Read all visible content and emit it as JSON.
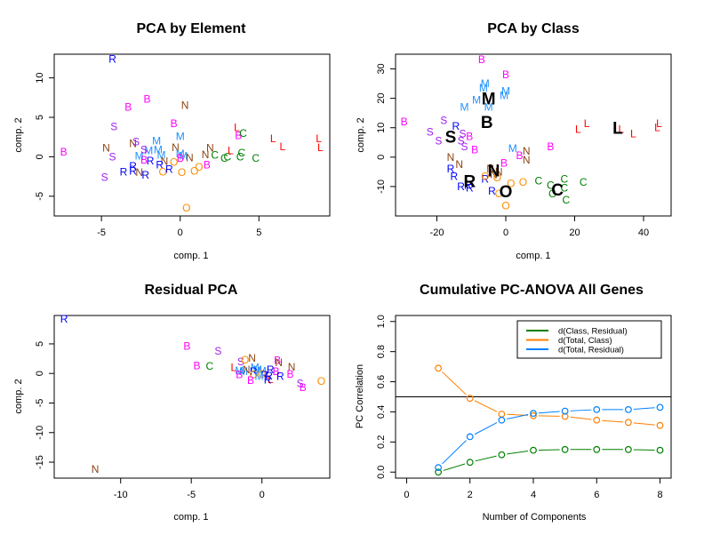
{
  "colors": {
    "B": "#ff00ff",
    "S": "#a020f0",
    "M": "#1e90ff",
    "R": "#0000ff",
    "N": "#8b4513",
    "O": "#ff8c00",
    "C": "#008000",
    "L": "#ff0000",
    "centroid": "#000000",
    "green_line": "#007f00",
    "orange_line": "#ff7f00",
    "blue_line": "#0080ff"
  },
  "chart_data": [
    {
      "type": "scatter",
      "title": "PCA by Element",
      "xlabel": "comp. 1",
      "ylabel": "comp. 2",
      "xlim": [
        -8,
        9.5
      ],
      "ylim": [
        -7.5,
        13
      ],
      "xticks": [
        -5,
        0,
        5
      ],
      "yticks": [
        -5,
        0,
        5,
        10
      ],
      "points": [
        {
          "label": "R",
          "x": -4.3,
          "y": 12.4
        },
        {
          "label": "B",
          "x": -2.1,
          "y": 7.3
        },
        {
          "label": "B",
          "x": -3.3,
          "y": 6.3
        },
        {
          "label": "N",
          "x": 0.3,
          "y": 6.5
        },
        {
          "label": "B",
          "x": -0.4,
          "y": 4.2
        },
        {
          "label": "S",
          "x": -4.2,
          "y": 3.8
        },
        {
          "label": "M",
          "x": 0.0,
          "y": 2.6
        },
        {
          "label": "M",
          "x": -1.5,
          "y": 2.0
        },
        {
          "label": "N",
          "x": -3.0,
          "y": 1.7
        },
        {
          "label": "S",
          "x": -2.8,
          "y": 1.9
        },
        {
          "label": "N",
          "x": -4.7,
          "y": 1.1
        },
        {
          "label": "B",
          "x": -7.4,
          "y": 0.6
        },
        {
          "label": "S",
          "x": -4.3,
          "y": 0.0
        },
        {
          "label": "M",
          "x": -2.6,
          "y": 0.1
        },
        {
          "label": "M",
          "x": -2.0,
          "y": 0.8
        },
        {
          "label": "M",
          "x": -1.4,
          "y": 0.9
        },
        {
          "label": "M",
          "x": -1.2,
          "y": 0.2
        },
        {
          "label": "S",
          "x": -2.3,
          "y": 0.9
        },
        {
          "label": "B",
          "x": -2.3,
          "y": -0.4
        },
        {
          "label": "R",
          "x": -1.9,
          "y": -0.5
        },
        {
          "label": "N",
          "x": -0.3,
          "y": 1.2
        },
        {
          "label": "M",
          "x": 0.0,
          "y": 0.4
        },
        {
          "label": "M",
          "x": 0.2,
          "y": 0.1
        },
        {
          "label": "B",
          "x": 0.0,
          "y": -0.2
        },
        {
          "label": "N",
          "x": 0.6,
          "y": -0.1
        },
        {
          "label": "N",
          "x": -1.0,
          "y": -0.6
        },
        {
          "label": "R",
          "x": -1.3,
          "y": -1.0
        },
        {
          "label": "O",
          "x": -0.4,
          "y": -0.7
        },
        {
          "label": "R",
          "x": -0.7,
          "y": -1.6
        },
        {
          "label": "O",
          "x": -1.1,
          "y": -1.9
        },
        {
          "label": "O",
          "x": 0.1,
          "y": -2.0
        },
        {
          "label": "O",
          "x": 0.9,
          "y": -1.8
        },
        {
          "label": "O",
          "x": 1.2,
          "y": -1.3
        },
        {
          "label": "O",
          "x": 0.4,
          "y": -6.5
        },
        {
          "label": "B",
          "x": 1.7,
          "y": -1.0
        },
        {
          "label": "R",
          "x": -3.0,
          "y": -1.2
        },
        {
          "label": "R",
          "x": -3.0,
          "y": -1.8
        },
        {
          "label": "R",
          "x": -3.6,
          "y": -1.9
        },
        {
          "label": "N",
          "x": -2.6,
          "y": -2.0
        },
        {
          "label": "R",
          "x": -2.2,
          "y": -2.3
        },
        {
          "label": "S",
          "x": -4.8,
          "y": -2.6
        },
        {
          "label": "N",
          "x": 1.6,
          "y": 0.3
        },
        {
          "label": "N",
          "x": 1.9,
          "y": 1.1
        },
        {
          "label": "C",
          "x": 2.2,
          "y": 0.2
        },
        {
          "label": "C",
          "x": 2.8,
          "y": -0.2
        },
        {
          "label": "C",
          "x": 3.0,
          "y": 0.0
        },
        {
          "label": "L",
          "x": 3.2,
          "y": 0.8
        },
        {
          "label": "L",
          "x": 3.6,
          "y": 3.7
        },
        {
          "label": "B",
          "x": 3.7,
          "y": 2.7
        },
        {
          "label": "C",
          "x": 4.0,
          "y": 3.0
        },
        {
          "label": "C",
          "x": 3.9,
          "y": 0.5
        },
        {
          "label": "C",
          "x": 3.8,
          "y": 0.0
        },
        {
          "label": "C",
          "x": 4.8,
          "y": -0.2
        },
        {
          "label": "L",
          "x": 5.9,
          "y": 2.3
        },
        {
          "label": "L",
          "x": 6.5,
          "y": 1.3
        },
        {
          "label": "L",
          "x": 8.8,
          "y": 2.3
        },
        {
          "label": "L",
          "x": 8.9,
          "y": 1.2
        }
      ]
    },
    {
      "type": "scatter",
      "title": "PCA by Class",
      "xlabel": "comp. 1",
      "ylabel": "comp. 2",
      "xlim": [
        -32,
        48
      ],
      "ylim": [
        -20,
        35
      ],
      "xticks": [
        -20,
        0,
        20,
        40
      ],
      "yticks": [
        -10,
        0,
        10,
        20,
        30
      ],
      "points": [
        {
          "label": "B",
          "x": -7.0,
          "y": 33.2
        },
        {
          "label": "B",
          "x": 0.0,
          "y": 28.0
        },
        {
          "label": "M",
          "x": -6.0,
          "y": 25.0
        },
        {
          "label": "M",
          "x": -6.5,
          "y": 23.5
        },
        {
          "label": "M",
          "x": 0.0,
          "y": 22.5
        },
        {
          "label": "M",
          "x": -0.5,
          "y": 21.0
        },
        {
          "label": "M",
          "x": -8.5,
          "y": 19.5
        },
        {
          "label": "M",
          "x": -5.0,
          "y": 17.0
        },
        {
          "label": "M",
          "x": -12.0,
          "y": 17.0
        },
        {
          "label": "B",
          "x": -29.5,
          "y": 12.0
        },
        {
          "label": "S",
          "x": -18.0,
          "y": 12.5
        },
        {
          "label": "R",
          "x": -14.5,
          "y": 10.5
        },
        {
          "label": "S",
          "x": -22.0,
          "y": 8.5
        },
        {
          "label": "S",
          "x": -19.5,
          "y": 5.5
        },
        {
          "label": "S",
          "x": -12.5,
          "y": 8.0
        },
        {
          "label": "S",
          "x": -13.0,
          "y": 5.5
        },
        {
          "label": "S",
          "x": -12.0,
          "y": 3.5
        },
        {
          "label": "B",
          "x": -10.5,
          "y": 7.0
        },
        {
          "label": "B",
          "x": -9.0,
          "y": 2.5
        },
        {
          "label": "M",
          "x": 2.0,
          "y": 3.0
        },
        {
          "label": "B",
          "x": 4.0,
          "y": 0.5
        },
        {
          "label": "N",
          "x": 6.0,
          "y": 2.0
        },
        {
          "label": "N",
          "x": 6.0,
          "y": -1.0
        },
        {
          "label": "B",
          "x": 13.0,
          "y": 3.5
        },
        {
          "label": "N",
          "x": -16.0,
          "y": 0.0
        },
        {
          "label": "N",
          "x": -13.5,
          "y": -2.5
        },
        {
          "label": "B",
          "x": -0.5,
          "y": -2.0
        },
        {
          "label": "R",
          "x": -16.0,
          "y": -4.0
        },
        {
          "label": "R",
          "x": -15.0,
          "y": -6.5
        },
        {
          "label": "R",
          "x": -13.0,
          "y": -10.0
        },
        {
          "label": "R",
          "x": -10.5,
          "y": -10.5
        },
        {
          "label": "R",
          "x": -11.0,
          "y": -9.5
        },
        {
          "label": "R",
          "x": -6.0,
          "y": -7.5
        },
        {
          "label": "R",
          "x": -4.0,
          "y": -11.5
        },
        {
          "label": "N",
          "x": -4.5,
          "y": -4.0
        },
        {
          "label": "N",
          "x": -2.0,
          "y": -5.0
        },
        {
          "label": "N",
          "x": -3.5,
          "y": -6.0
        },
        {
          "label": "O",
          "x": -6.0,
          "y": -6.5
        },
        {
          "label": "O",
          "x": -2.5,
          "y": -7.0
        },
        {
          "label": "O",
          "x": 1.5,
          "y": -9.0
        },
        {
          "label": "O",
          "x": 5.0,
          "y": -8.5
        },
        {
          "label": "O",
          "x": -2.0,
          "y": -12.5
        },
        {
          "label": "O",
          "x": 0.0,
          "y": -16.5
        },
        {
          "label": "C",
          "x": 9.5,
          "y": -8.0
        },
        {
          "label": "C",
          "x": 13.0,
          "y": -9.5
        },
        {
          "label": "C",
          "x": 13.5,
          "y": -12.5
        },
        {
          "label": "C",
          "x": 17.0,
          "y": -7.5
        },
        {
          "label": "C",
          "x": 17.0,
          "y": -10.5
        },
        {
          "label": "C",
          "x": 17.5,
          "y": -14.5
        },
        {
          "label": "C",
          "x": 22.5,
          "y": -8.5
        },
        {
          "label": "L",
          "x": 21.0,
          "y": 9.5
        },
        {
          "label": "L",
          "x": 23.5,
          "y": 11.5
        },
        {
          "label": "L",
          "x": 33.5,
          "y": 9.5
        },
        {
          "label": "L",
          "x": 37.0,
          "y": 8.0
        },
        {
          "label": "L",
          "x": 44.0,
          "y": 10.0
        },
        {
          "label": "L",
          "x": 44.5,
          "y": 11.5
        }
      ],
      "centroids": [
        {
          "label": "M",
          "x": -5.0,
          "y": 20.0
        },
        {
          "label": "B",
          "x": -5.5,
          "y": 12.0
        },
        {
          "label": "S",
          "x": -16.0,
          "y": 7.0
        },
        {
          "label": "L",
          "x": 32.5,
          "y": 10.0
        },
        {
          "label": "N",
          "x": -3.5,
          "y": -4.5
        },
        {
          "label": "R",
          "x": -10.5,
          "y": -8.0
        },
        {
          "label": "O",
          "x": 0.0,
          "y": -11.5
        },
        {
          "label": "C",
          "x": 15.0,
          "y": -11.0
        }
      ]
    },
    {
      "type": "scatter",
      "title": "Residual PCA",
      "xlabel": "comp. 1",
      "ylabel": "comp. 2",
      "xlim": [
        -14.7,
        4.8
      ],
      "ylim": [
        -17.7,
        9.8
      ],
      "xticks": [
        -10,
        -5,
        0
      ],
      "yticks": [
        -15,
        -10,
        -5,
        0,
        5
      ],
      "points": [
        {
          "label": "R",
          "x": -14.0,
          "y": 9.2
        },
        {
          "label": "N",
          "x": -11.8,
          "y": -16.2
        },
        {
          "label": "B",
          "x": -5.3,
          "y": 4.6
        },
        {
          "label": "S",
          "x": -3.1,
          "y": 3.8
        },
        {
          "label": "B",
          "x": -4.6,
          "y": 1.3
        },
        {
          "label": "C",
          "x": -3.7,
          "y": 1.2
        },
        {
          "label": "S",
          "x": -1.5,
          "y": 2.0
        },
        {
          "label": "O",
          "x": -1.2,
          "y": 2.3
        },
        {
          "label": "N",
          "x": -0.7,
          "y": 2.6
        },
        {
          "label": "B",
          "x": 1.1,
          "y": 2.2
        },
        {
          "label": "N",
          "x": 1.2,
          "y": 1.8
        },
        {
          "label": "N",
          "x": 2.1,
          "y": 1.1
        },
        {
          "label": "L",
          "x": -2.0,
          "y": 1.0
        },
        {
          "label": "M",
          "x": -1.6,
          "y": 0.5
        },
        {
          "label": "M",
          "x": -1.3,
          "y": 0.3
        },
        {
          "label": "N",
          "x": -1.1,
          "y": 0.6
        },
        {
          "label": "M",
          "x": -0.5,
          "y": 1.0
        },
        {
          "label": "M",
          "x": -0.3,
          "y": 0.6
        },
        {
          "label": "M",
          "x": 0.0,
          "y": 0.4
        },
        {
          "label": "R",
          "x": -0.6,
          "y": 0.3
        },
        {
          "label": "R",
          "x": 0.6,
          "y": 0.6
        },
        {
          "label": "B",
          "x": 1.0,
          "y": 0.3
        },
        {
          "label": "B",
          "x": -1.6,
          "y": -0.2
        },
        {
          "label": "O",
          "x": -0.6,
          "y": -0.2
        },
        {
          "label": "O",
          "x": 0.0,
          "y": -0.1
        },
        {
          "label": "R",
          "x": 0.2,
          "y": -0.3
        },
        {
          "label": "R",
          "x": 0.5,
          "y": -0.4
        },
        {
          "label": "R",
          "x": 1.3,
          "y": -0.5
        },
        {
          "label": "M",
          "x": -0.2,
          "y": -0.5
        },
        {
          "label": "L",
          "x": 0.6,
          "y": -1.0
        },
        {
          "label": "R",
          "x": 0.4,
          "y": -1.1
        },
        {
          "label": "B",
          "x": -0.8,
          "y": -1.2
        },
        {
          "label": "B",
          "x": 2.0,
          "y": -0.1
        },
        {
          "label": "S",
          "x": 2.7,
          "y": -1.7
        },
        {
          "label": "B",
          "x": 2.9,
          "y": -2.4
        },
        {
          "label": "O",
          "x": 4.2,
          "y": -1.3
        }
      ]
    },
    {
      "type": "line",
      "title": "Cumulative PC-ANOVA All Genes",
      "xlabel": "Number of Components",
      "ylabel": "PC Correlation",
      "xlim": [
        -0.35,
        8.35
      ],
      "ylim": [
        -0.04,
        1.04
      ],
      "xticks": [
        0,
        2,
        4,
        6,
        8
      ],
      "yticks": [
        0.0,
        0.2,
        0.4,
        0.6,
        0.8,
        1.0
      ],
      "x": [
        1,
        2,
        3,
        4,
        5,
        6,
        7,
        8
      ],
      "hline": 0.5,
      "legend_position": "top-right",
      "series": [
        {
          "name": "d(Class, Residual)",
          "color_key": "green_line",
          "values": [
            0.0,
            0.065,
            0.115,
            0.145,
            0.15,
            0.15,
            0.15,
            0.145
          ]
        },
        {
          "name": "d(Total, Class)",
          "color_key": "orange_line",
          "values": [
            0.69,
            0.49,
            0.385,
            0.375,
            0.37,
            0.345,
            0.33,
            0.31
          ]
        },
        {
          "name": "d(Total, Residual)",
          "color_key": "blue_line",
          "values": [
            0.03,
            0.235,
            0.345,
            0.39,
            0.405,
            0.415,
            0.415,
            0.43
          ]
        }
      ]
    }
  ]
}
